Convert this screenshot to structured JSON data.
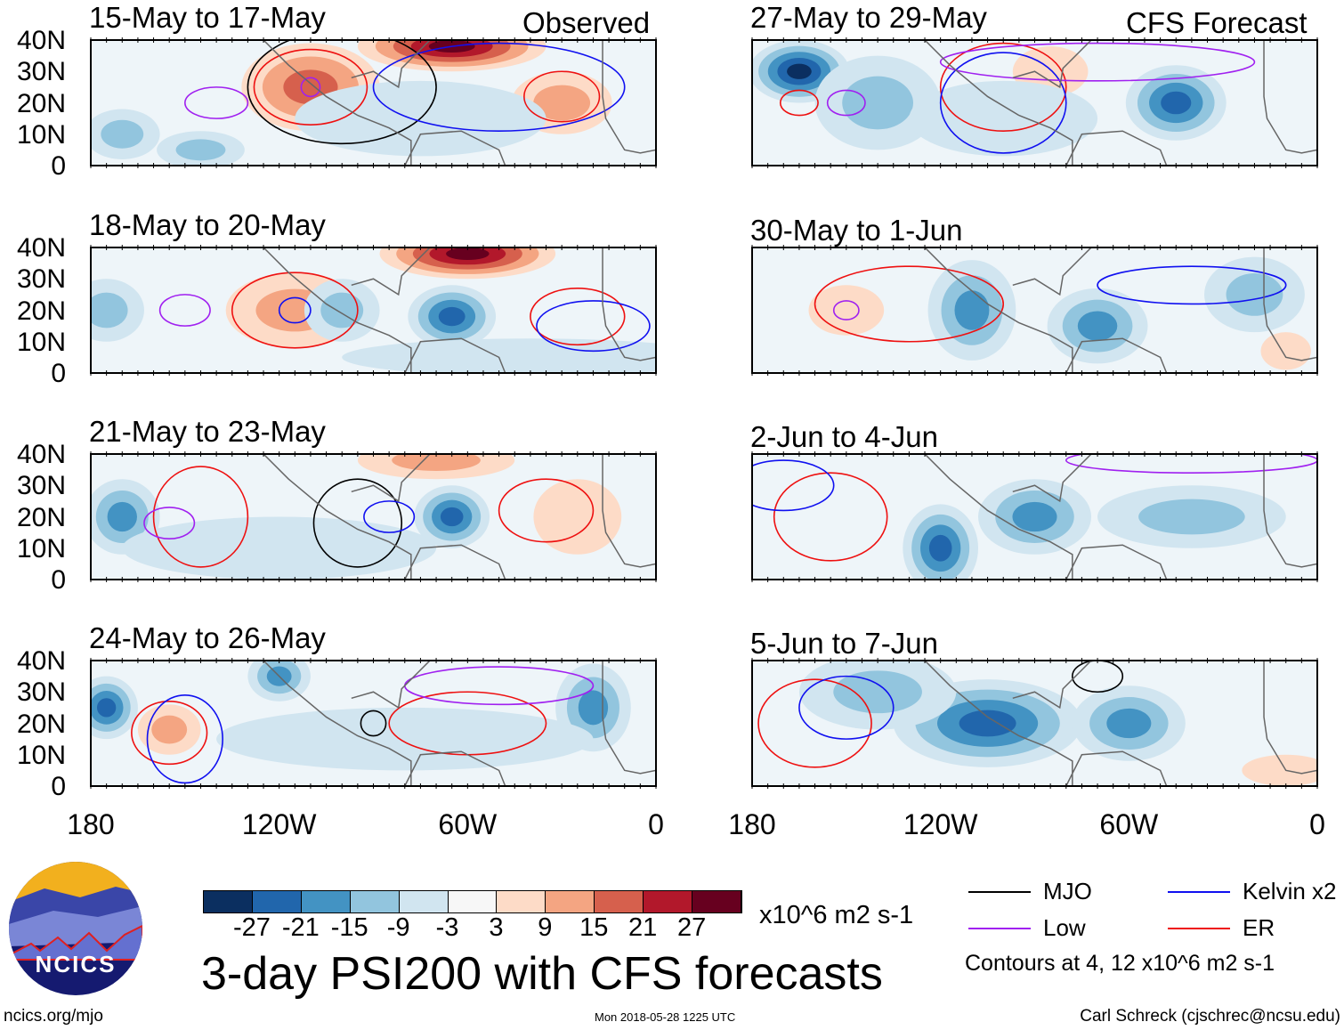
{
  "colors": {
    "levels": [
      "#0b2f60",
      "#2166ac",
      "#4393c3",
      "#92c5de",
      "#d1e5f0",
      "#f7f7f7",
      "#fddbc7",
      "#f4a582",
      "#d6604d",
      "#b2182b",
      "#67001f"
    ],
    "MJO": "#000000",
    "Kelvin": "#1010f0",
    "Low": "#a020f0",
    "ER": "#ee1010"
  },
  "chart_data": {
    "type": "heatmap",
    "title": "3-day PSI200 with CFS forecasts",
    "units": "x10^6 m2 s-1",
    "colorbar_ticks": [
      "-27",
      "-21",
      "-15",
      "-9",
      "-3",
      "3",
      "9",
      "15",
      "21",
      "27"
    ],
    "lat_ticks": [
      "40N",
      "30N",
      "20N",
      "10N",
      "0"
    ],
    "lon_ticks": [
      "180",
      "120W",
      "60W",
      "0"
    ],
    "column_labels": [
      "Observed",
      "CFS Forecast"
    ],
    "contours_note": "Contours at 4, 12 x10^6 m2 s-1",
    "legend": [
      {
        "name": "MJO",
        "key": "MJO"
      },
      {
        "name": "Kelvin x2",
        "key": "Kelvin"
      },
      {
        "name": "Low",
        "key": "Low"
      },
      {
        "name": "ER",
        "key": "ER"
      }
    ],
    "panels": [
      {
        "title": "15-May to 17-May",
        "col": 0,
        "row": 0,
        "anom": [
          [
            110,
            25,
            18,
            22,
            14
          ],
          [
            65,
            38,
            27,
            30,
            8
          ],
          [
            30,
            20,
            9,
            16,
            10
          ],
          [
            170,
            10,
            -9,
            12,
            8
          ],
          [
            145,
            5,
            -9,
            14,
            6
          ],
          [
            75,
            15,
            -3,
            40,
            12
          ]
        ],
        "contours": [
          [
            110,
            25,
            18,
            12,
            "ER"
          ],
          [
            30,
            22,
            12,
            8,
            "ER"
          ],
          [
            140,
            20,
            10,
            5,
            "Low"
          ],
          [
            110,
            25,
            3,
            3,
            "Low"
          ],
          [
            100,
            25,
            30,
            18,
            "MJO"
          ],
          [
            50,
            25,
            40,
            14,
            "Kelvin"
          ]
        ]
      },
      {
        "title": "18-May to 20-May",
        "col": 0,
        "row": 1,
        "anom": [
          [
            115,
            20,
            12,
            22,
            12
          ],
          [
            60,
            38,
            27,
            28,
            8
          ],
          [
            65,
            18,
            -21,
            14,
            10
          ],
          [
            100,
            20,
            -12,
            12,
            10
          ],
          [
            175,
            20,
            -9,
            12,
            10
          ],
          [
            40,
            5,
            -6,
            60,
            6
          ]
        ],
        "contours": [
          [
            115,
            20,
            20,
            12,
            "ER"
          ],
          [
            25,
            18,
            15,
            9,
            "ER"
          ],
          [
            115,
            20,
            5,
            4,
            "Kelvin"
          ],
          [
            20,
            15,
            18,
            8,
            "Kelvin"
          ],
          [
            150,
            20,
            8,
            5,
            "Low"
          ]
        ]
      },
      {
        "title": "21-May to 23-May",
        "col": 0,
        "row": 2,
        "anom": [
          [
            170,
            20,
            -15,
            12,
            12
          ],
          [
            65,
            20,
            -21,
            12,
            10
          ],
          [
            70,
            38,
            12,
            25,
            6
          ],
          [
            25,
            20,
            6,
            14,
            12
          ],
          [
            120,
            10,
            -3,
            50,
            10
          ]
        ],
        "contours": [
          [
            145,
            20,
            15,
            16,
            "ER"
          ],
          [
            35,
            22,
            15,
            10,
            "ER"
          ],
          [
            155,
            18,
            8,
            5,
            "Low"
          ],
          [
            95,
            18,
            14,
            14,
            "MJO"
          ],
          [
            85,
            20,
            8,
            5,
            "Kelvin"
          ]
        ]
      },
      {
        "title": "24-May to 26-May",
        "col": 0,
        "row": 3,
        "anom": [
          [
            175,
            25,
            -21,
            10,
            10
          ],
          [
            155,
            18,
            12,
            10,
            8
          ],
          [
            120,
            35,
            -15,
            10,
            8
          ],
          [
            20,
            25,
            -15,
            12,
            14
          ],
          [
            80,
            15,
            -3,
            60,
            10
          ]
        ],
        "contours": [
          [
            155,
            17,
            12,
            10,
            "ER"
          ],
          [
            60,
            20,
            25,
            10,
            "ER"
          ],
          [
            150,
            15,
            12,
            14,
            "Kelvin"
          ],
          [
            90,
            20,
            4,
            4,
            "MJO"
          ],
          [
            50,
            32,
            30,
            6,
            "Low"
          ]
        ]
      },
      {
        "title": "27-May to 29-May",
        "col": 1,
        "row": 0,
        "anom": [
          [
            165,
            30,
            -27,
            16,
            10
          ],
          [
            140,
            20,
            -9,
            20,
            15
          ],
          [
            45,
            20,
            -21,
            16,
            12
          ],
          [
            85,
            30,
            6,
            12,
            8
          ],
          [
            100,
            15,
            -6,
            30,
            12
          ]
        ],
        "contours": [
          [
            100,
            25,
            20,
            14,
            "ER"
          ],
          [
            165,
            20,
            6,
            4,
            "ER"
          ],
          [
            150,
            20,
            6,
            4,
            "Low"
          ],
          [
            100,
            20,
            20,
            16,
            "Kelvin"
          ],
          [
            70,
            33,
            50,
            6,
            "Low"
          ]
        ]
      },
      {
        "title": "30-May to 1-Jun",
        "col": 1,
        "row": 1,
        "anom": [
          [
            110,
            20,
            -15,
            14,
            16
          ],
          [
            70,
            15,
            -15,
            16,
            12
          ],
          [
            10,
            7,
            6,
            8,
            6
          ],
          [
            150,
            20,
            4,
            12,
            8
          ],
          [
            20,
            25,
            -9,
            16,
            12
          ]
        ],
        "contours": [
          [
            130,
            22,
            30,
            12,
            "ER"
          ],
          [
            40,
            28,
            30,
            6,
            "Kelvin"
          ],
          [
            150,
            20,
            4,
            3,
            "Low"
          ]
        ]
      },
      {
        "title": "2-Jun to 4-Jun",
        "col": 1,
        "row": 2,
        "anom": [
          [
            120,
            10,
            -21,
            12,
            14
          ],
          [
            90,
            20,
            -15,
            18,
            12
          ],
          [
            40,
            20,
            -9,
            30,
            10
          ]
        ],
        "contours": [
          [
            155,
            20,
            18,
            14,
            "ER"
          ],
          [
            170,
            30,
            16,
            8,
            "Kelvin"
          ],
          [
            40,
            38,
            40,
            4,
            "Low"
          ]
        ]
      },
      {
        "title": "5-Jun to 7-Jun",
        "col": 1,
        "row": 3,
        "anom": [
          [
            105,
            20,
            -21,
            30,
            14
          ],
          [
            60,
            20,
            -15,
            18,
            12
          ],
          [
            140,
            30,
            -9,
            25,
            12
          ],
          [
            10,
            5,
            6,
            14,
            5
          ]
        ],
        "contours": [
          [
            160,
            20,
            18,
            14,
            "ER"
          ],
          [
            150,
            25,
            15,
            10,
            "Kelvin"
          ],
          [
            70,
            35,
            8,
            5,
            "MJO"
          ]
        ]
      }
    ]
  },
  "footer": {
    "logo_text": "NCICS",
    "site": "ncics.org/mjo",
    "timestamp": "Mon 2018-05-28 1225 UTC",
    "credit": "Carl Schreck (cjschrec@ncsu.edu)"
  }
}
